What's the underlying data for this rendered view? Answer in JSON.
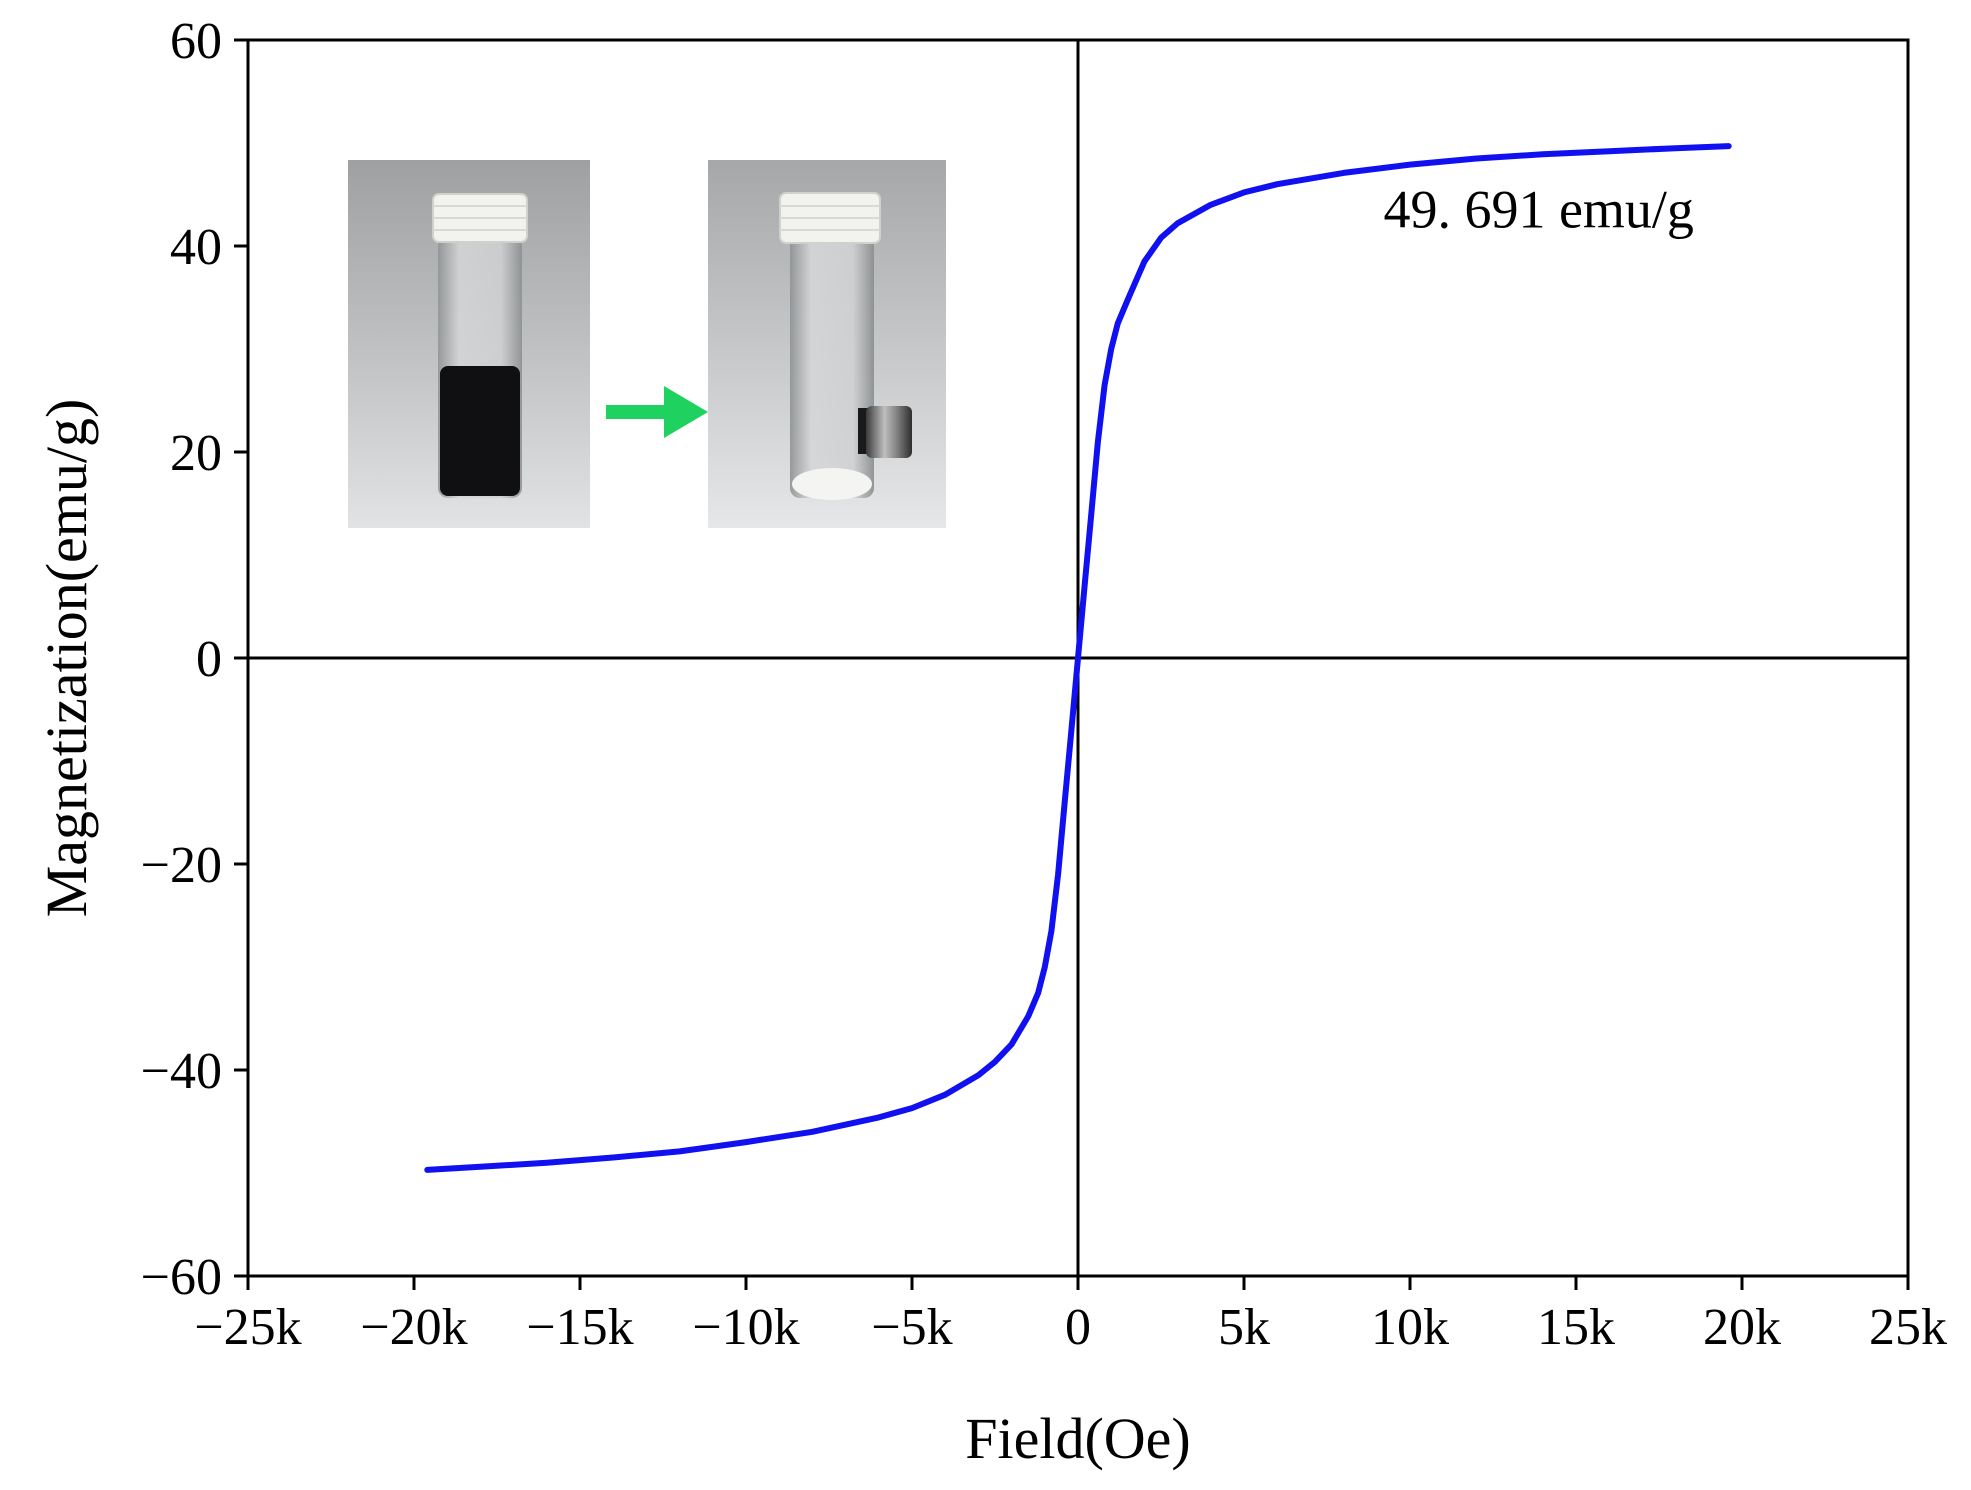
{
  "chart_data": {
    "type": "line",
    "title": "",
    "xlabel": "Field(Oe)",
    "ylabel": "Magnetization(emu/g)",
    "xlim": [
      -25000,
      25000
    ],
    "ylim": [
      -60,
      60
    ],
    "x_ticks": [
      -25000,
      -20000,
      -15000,
      -10000,
      -5000,
      0,
      5000,
      10000,
      15000,
      20000,
      25000
    ],
    "x_tick_labels": [
      "−25k",
      "−20k",
      "−15k",
      "−10k",
      "−5k",
      "0",
      "5k",
      "10k",
      "15k",
      "20k",
      "25k"
    ],
    "y_ticks": [
      -60,
      -40,
      -20,
      0,
      20,
      40,
      60
    ],
    "y_tick_labels": [
      "−60",
      "−40",
      "−20",
      "0",
      "20",
      "40",
      "60"
    ],
    "grid": false,
    "zero_lines": true,
    "series": [
      {
        "color": "#1010f0",
        "x": [
          -19600,
          -18000,
          -16000,
          -14000,
          -12000,
          -10000,
          -8000,
          -6000,
          -5000,
          -4000,
          -3000,
          -2500,
          -2000,
          -1500,
          -1200,
          -1000,
          -800,
          -600,
          -400,
          -200,
          0,
          200,
          400,
          600,
          800,
          1000,
          1200,
          1500,
          2000,
          2500,
          3000,
          4000,
          5000,
          6000,
          8000,
          10000,
          12000,
          14000,
          16000,
          18000,
          19600
        ],
        "y": [
          -49.7,
          -49.4,
          -49.0,
          -48.5,
          -47.9,
          -47.0,
          -46.0,
          -44.6,
          -43.7,
          -42.4,
          -40.5,
          -39.2,
          -37.5,
          -34.8,
          -32.5,
          -30.0,
          -26.5,
          -21.0,
          -14.0,
          -7.0,
          0,
          7.0,
          14.0,
          21.0,
          26.5,
          30.0,
          32.5,
          34.8,
          38.5,
          40.8,
          42.2,
          44.0,
          45.2,
          46.0,
          47.1,
          47.9,
          48.5,
          48.9,
          49.2,
          49.5,
          49.7
        ]
      }
    ],
    "annotations": [
      {
        "text": "49. 691  emu/g",
        "x": 9200,
        "y": 41.8
      }
    ]
  },
  "inset": {
    "arrow_color": "#1fd15f"
  }
}
